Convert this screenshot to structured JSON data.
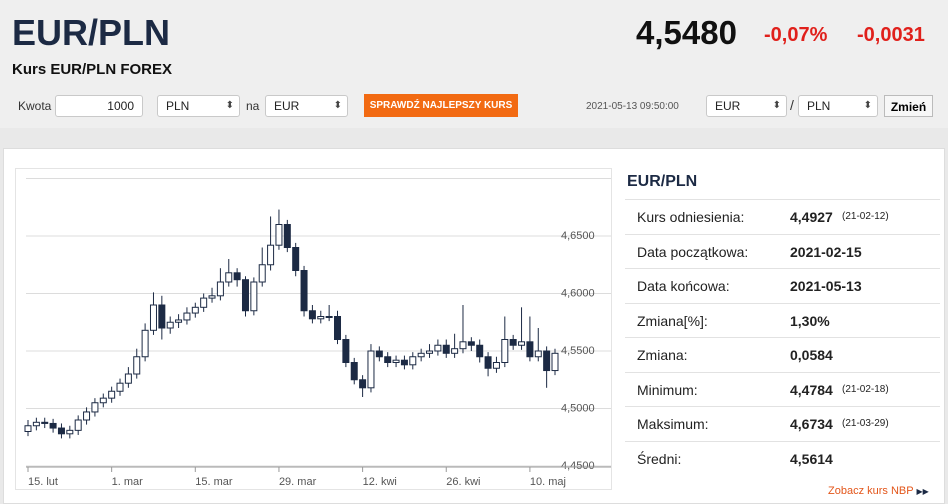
{
  "header": {
    "title": "EUR/PLN",
    "subtitle": "Kurs EUR/PLN FOREX",
    "price": "4,5480",
    "change_pct": "-0,07%",
    "change": "-0,0031"
  },
  "form": {
    "amount_label": "Kwota",
    "amount": "1000",
    "from": "PLN",
    "to_label": "na",
    "to": "EUR",
    "button": "SPRAWDŹ NAJLEPSZY KURS",
    "timestamp": "2021-05-13 09:50:00",
    "base": "EUR",
    "separator": "/",
    "quote": "PLN",
    "change_button": "Zmień"
  },
  "stats": {
    "title": "EUR/PLN",
    "rows": [
      [
        "Kurs odniesienia:",
        "4,4927",
        "(21-02-12)"
      ],
      [
        "Data początkowa:",
        "2021-02-15"
      ],
      [
        "Data końcowa:",
        "2021-05-13"
      ],
      [
        "Zmiana[%]:",
        "1,30%"
      ],
      [
        "Zmiana:",
        "0,0584"
      ],
      [
        "Minimum:",
        "4,4784",
        "(21-02-18)"
      ],
      [
        "Maksimum:",
        "4,6734",
        "(21-03-29)"
      ],
      [
        "Średni:",
        "4,5614"
      ]
    ],
    "link": "Zobacz kurs NBP"
  },
  "chart_data": {
    "type": "candlestick",
    "categories": [
      "15. lut",
      null,
      null,
      null,
      null,
      null,
      null,
      null,
      null,
      null,
      "1. mar",
      null,
      null,
      null,
      null,
      null,
      null,
      null,
      null,
      null,
      "15. mar",
      null,
      null,
      null,
      null,
      null,
      null,
      null,
      null,
      null,
      "29. mar",
      null,
      null,
      null,
      null,
      null,
      null,
      null,
      null,
      null,
      "12. kwi",
      null,
      null,
      null,
      null,
      null,
      null,
      null,
      null,
      null,
      "26. kwi",
      null,
      null,
      null,
      null,
      null,
      null,
      null,
      null,
      null,
      "10. maj",
      null,
      null,
      null
    ],
    "open": [
      4.48,
      4.485,
      4.488,
      4.487,
      4.483,
      4.478,
      4.481,
      4.49,
      4.497,
      4.505,
      4.509,
      4.515,
      4.522,
      4.53,
      4.545,
      4.568,
      4.59,
      4.57,
      4.575,
      4.577,
      4.583,
      4.588,
      4.596,
      4.598,
      4.61,
      4.618,
      4.612,
      4.585,
      4.61,
      4.625,
      4.642,
      4.66,
      4.64,
      4.62,
      4.585,
      4.578,
      4.58,
      4.58,
      4.56,
      4.54,
      4.525,
      4.518,
      4.55,
      4.545,
      4.54,
      4.542,
      4.538,
      4.545,
      4.548,
      4.55,
      4.555,
      4.548,
      4.552,
      4.558,
      4.555,
      4.545,
      4.535,
      4.54,
      4.56,
      4.555,
      4.558,
      4.545,
      4.55,
      4.533
    ],
    "high": [
      4.49,
      4.492,
      4.492,
      4.491,
      4.487,
      4.485,
      4.494,
      4.501,
      4.509,
      4.513,
      4.519,
      4.526,
      4.536,
      4.552,
      4.574,
      4.601,
      4.598,
      4.58,
      4.582,
      4.588,
      4.592,
      4.6,
      4.605,
      4.622,
      4.63,
      4.622,
      4.615,
      4.614,
      4.64,
      4.667,
      4.673,
      4.664,
      4.644,
      4.624,
      4.59,
      4.585,
      4.59,
      4.585,
      4.564,
      4.544,
      4.529,
      4.556,
      4.554,
      4.549,
      4.546,
      4.546,
      4.549,
      4.552,
      4.556,
      4.56,
      4.56,
      4.565,
      4.59,
      4.562,
      4.56,
      4.549,
      4.545,
      4.58,
      4.564,
      4.588,
      4.58,
      4.57,
      4.554,
      4.552
    ],
    "low": [
      4.476,
      4.481,
      4.483,
      4.479,
      4.474,
      4.474,
      4.477,
      4.486,
      4.493,
      4.501,
      4.505,
      4.511,
      4.518,
      4.526,
      4.541,
      4.564,
      4.56,
      4.565,
      4.57,
      4.573,
      4.579,
      4.584,
      4.592,
      4.594,
      4.606,
      4.606,
      4.58,
      4.581,
      4.606,
      4.62,
      4.638,
      4.636,
      4.615,
      4.58,
      4.574,
      4.574,
      4.576,
      4.556,
      4.536,
      4.521,
      4.51,
      4.514,
      4.541,
      4.536,
      4.536,
      4.534,
      4.534,
      4.541,
      4.544,
      4.546,
      4.544,
      4.544,
      4.548,
      4.55,
      4.54,
      4.528,
      4.531,
      4.536,
      4.551,
      4.551,
      4.541,
      4.541,
      4.518,
      4.529
    ],
    "close": [
      4.485,
      4.488,
      4.487,
      4.483,
      4.478,
      4.481,
      4.49,
      4.497,
      4.505,
      4.509,
      4.515,
      4.522,
      4.53,
      4.545,
      4.568,
      4.59,
      4.57,
      4.575,
      4.577,
      4.583,
      4.588,
      4.596,
      4.598,
      4.61,
      4.618,
      4.612,
      4.585,
      4.61,
      4.625,
      4.642,
      4.66,
      4.64,
      4.62,
      4.585,
      4.578,
      4.58,
      4.58,
      4.56,
      4.54,
      4.525,
      4.518,
      4.55,
      4.545,
      4.54,
      4.542,
      4.538,
      4.545,
      4.548,
      4.55,
      4.555,
      4.548,
      4.552,
      4.558,
      4.555,
      4.545,
      4.535,
      4.54,
      4.56,
      4.555,
      4.558,
      4.545,
      4.55,
      4.533,
      4.548
    ],
    "ylim": [
      4.44,
      4.7
    ],
    "yticks": [
      {
        "value": 4.45,
        "label": "4,4500"
      },
      {
        "value": 4.5,
        "label": "4,5000"
      },
      {
        "value": 4.55,
        "label": "4,5500"
      },
      {
        "value": 4.6,
        "label": "4,6000"
      },
      {
        "value": 4.65,
        "label": "4,6500"
      }
    ],
    "grid": true,
    "up_color": "#ffffff",
    "down_color": "#1c2a44"
  }
}
